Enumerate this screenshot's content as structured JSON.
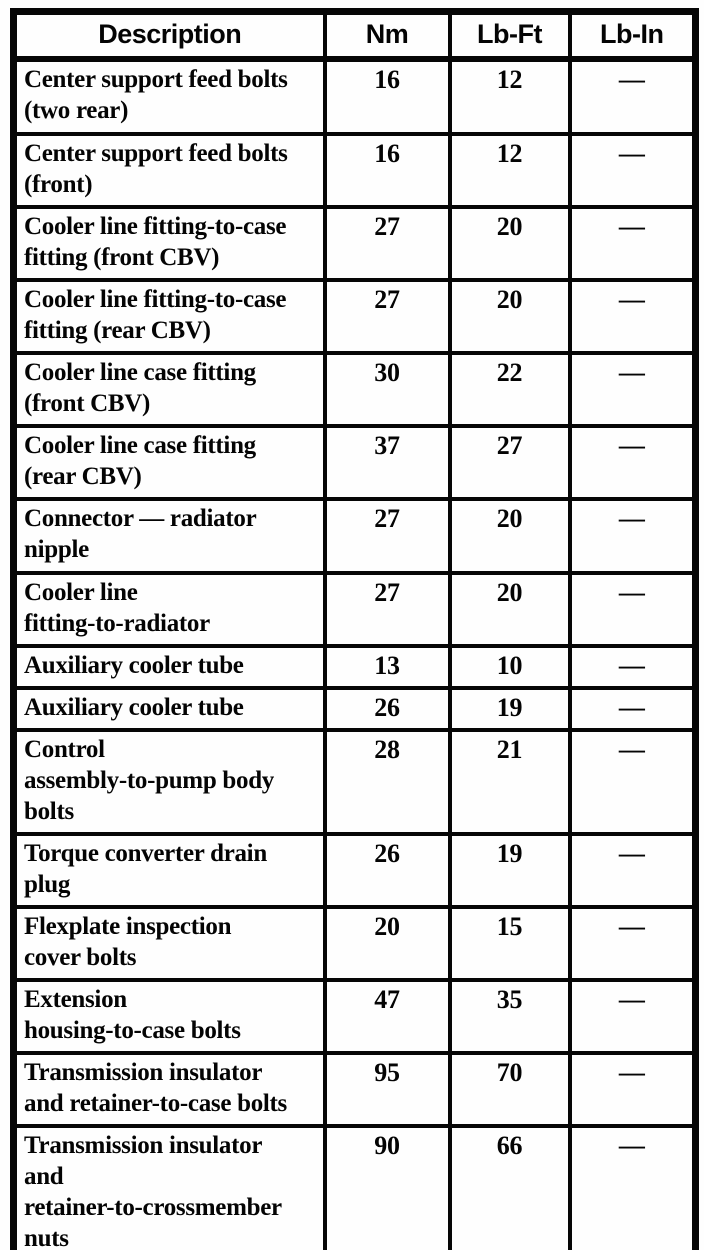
{
  "page": {
    "background_color": "#fefefe",
    "ink_color": "#040404"
  },
  "table": {
    "columns": [
      {
        "key": "description",
        "label": "Description"
      },
      {
        "key": "nm",
        "label": "Nm"
      },
      {
        "key": "lbft",
        "label": "Lb-Ft"
      },
      {
        "key": "lbin",
        "label": "Lb-In"
      }
    ],
    "rows": [
      {
        "description": "Center support feed bolts\n(two rear)",
        "nm": "16",
        "lbft": "12",
        "lbin": "—"
      },
      {
        "description": "Center support feed bolts\n(front)",
        "nm": "16",
        "lbft": "12",
        "lbin": "—"
      },
      {
        "description": "Cooler line fitting-to-case\nfitting (front CBV)",
        "nm": "27",
        "lbft": "20",
        "lbin": "—"
      },
      {
        "description": "Cooler line fitting-to-case\nfitting (rear CBV)",
        "nm": "27",
        "lbft": "20",
        "lbin": "—"
      },
      {
        "description": "Cooler line case fitting\n(front CBV)",
        "nm": "30",
        "lbft": "22",
        "lbin": "—"
      },
      {
        "description": "Cooler line case fitting\n(rear CBV)",
        "nm": "37",
        "lbft": "27",
        "lbin": "—"
      },
      {
        "description": "Connector — radiator\nnipple",
        "nm": "27",
        "lbft": "20",
        "lbin": "—"
      },
      {
        "description": "Cooler line\nfitting-to-radiator",
        "nm": "27",
        "lbft": "20",
        "lbin": "—"
      },
      {
        "description": "Auxiliary cooler tube",
        "nm": "13",
        "lbft": "10",
        "lbin": "—"
      },
      {
        "description": "Auxiliary cooler tube",
        "nm": "26",
        "lbft": "19",
        "lbin": "—"
      },
      {
        "description": "Control\nassembly-to-pump body\nbolts",
        "nm": "28",
        "lbft": "21",
        "lbin": "—"
      },
      {
        "description": "Torque converter drain\nplug",
        "nm": "26",
        "lbft": "19",
        "lbin": "—"
      },
      {
        "description": "Flexplate inspection\ncover bolts",
        "nm": "20",
        "lbft": "15",
        "lbin": "—"
      },
      {
        "description": "Extension\nhousing-to-case bolts",
        "nm": "47",
        "lbft": "35",
        "lbin": "—"
      },
      {
        "description": "Transmission insulator\nand retainer-to-case bolts",
        "nm": "95",
        "lbft": "70",
        "lbin": "—"
      },
      {
        "description": "Transmission insulator\nand\nretainer-to-crossmember\nnuts",
        "nm": "90",
        "lbft": "66",
        "lbin": "—"
      }
    ]
  }
}
